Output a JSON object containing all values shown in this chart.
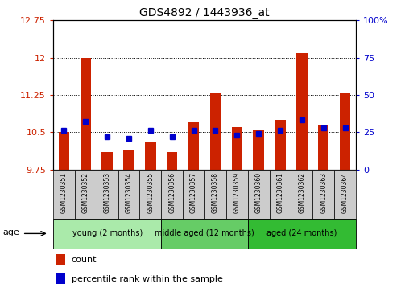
{
  "title": "GDS4892 / 1443936_at",
  "samples": [
    "GSM1230351",
    "GSM1230352",
    "GSM1230353",
    "GSM1230354",
    "GSM1230355",
    "GSM1230356",
    "GSM1230357",
    "GSM1230358",
    "GSM1230359",
    "GSM1230360",
    "GSM1230361",
    "GSM1230362",
    "GSM1230363",
    "GSM1230364"
  ],
  "counts": [
    10.5,
    12.0,
    10.1,
    10.15,
    10.3,
    10.1,
    10.7,
    11.3,
    10.6,
    10.55,
    10.75,
    12.1,
    10.65,
    11.3
  ],
  "percentiles": [
    26,
    32,
    22,
    21,
    26,
    22,
    26,
    26,
    23,
    24,
    26,
    33,
    28,
    28
  ],
  "ymin": 9.75,
  "ymax": 12.75,
  "yticks": [
    9.75,
    10.5,
    11.25,
    12.0,
    12.75
  ],
  "ytick_labels": [
    "9.75",
    "10.5",
    "11.25",
    "12",
    "12.75"
  ],
  "right_yticks": [
    0,
    25,
    50,
    75,
    100
  ],
  "right_ytick_labels": [
    "0",
    "25",
    "50",
    "75",
    "100%"
  ],
  "bar_color": "#cc2200",
  "percentile_color": "#0000cc",
  "grid_color": "black",
  "group_young": {
    "label": "young (2 months)",
    "indices": [
      0,
      1,
      2,
      3,
      4
    ],
    "color": "#aaeaaa"
  },
  "group_middle": {
    "label": "middle aged (12 months)",
    "indices": [
      5,
      6,
      7,
      8
    ],
    "color": "#66cc66"
  },
  "group_aged": {
    "label": "aged (24 months)",
    "indices": [
      9,
      10,
      11,
      12,
      13
    ],
    "color": "#33bb33"
  },
  "age_label": "age",
  "legend_count": "count",
  "legend_percentile": "percentile rank within the sample",
  "left_axis_color": "#cc2200",
  "right_axis_color": "#0000cc",
  "sample_box_color": "#cccccc",
  "bar_width": 0.5
}
